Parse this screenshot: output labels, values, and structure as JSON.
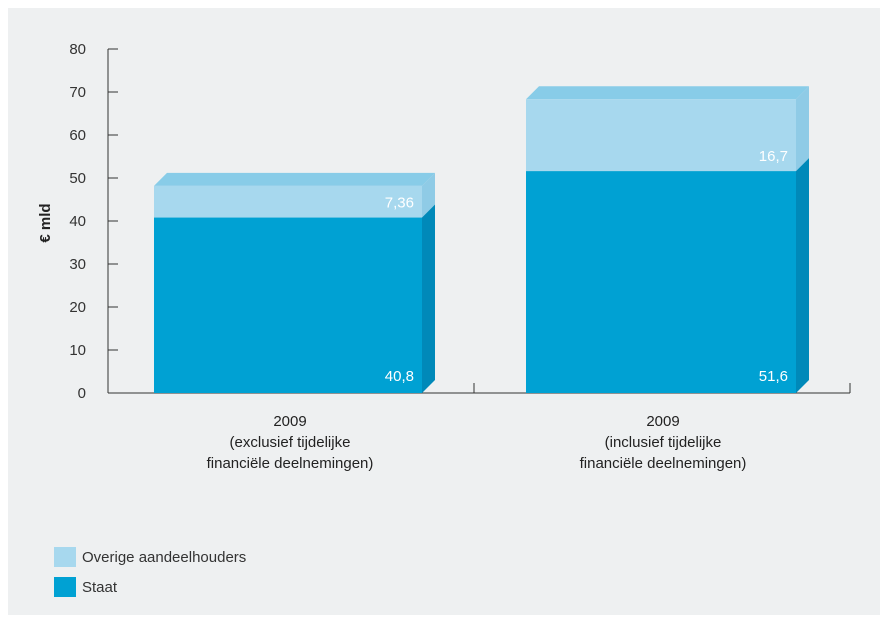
{
  "chart_data": {
    "type": "bar",
    "stacked": true,
    "ylabel": "€ mld",
    "ylim": [
      0,
      80
    ],
    "yticks": [
      "0",
      "10",
      "20",
      "30",
      "40",
      "50",
      "60",
      "70",
      "80"
    ],
    "grid": false,
    "categories": [
      [
        "2009",
        "(exclusief tijdelijke",
        "financiële deelnemingen)"
      ],
      [
        "2009",
        "(inclusief tijdelijke",
        "financiële deelnemingen)"
      ]
    ],
    "series": [
      {
        "name": "Staat",
        "values": [
          40.8,
          51.6
        ],
        "labels": [
          "40,8",
          "51,6"
        ],
        "color": "#00a1d3"
      },
      {
        "name": "Overige aandeelhouders",
        "values": [
          7.36,
          16.7
        ],
        "labels": [
          "7,36",
          "16,7"
        ],
        "color": "#a7d8ee"
      }
    ],
    "legend_position": "bottom-left"
  },
  "colors": {
    "background": "#eef0f1",
    "axis": "#333333",
    "staat": "#00a1d3",
    "staat_top": "#4bb9e0",
    "staat_side": "#0089b9",
    "overige": "#a7d8ee",
    "overige_top": "#88cce8",
    "overige_side": "#8fcbe6"
  },
  "legend": {
    "items": [
      {
        "label": "Overige aandeelhouders",
        "color": "#a7d8ee"
      },
      {
        "label": "Staat",
        "color": "#00a1d3"
      }
    ]
  }
}
